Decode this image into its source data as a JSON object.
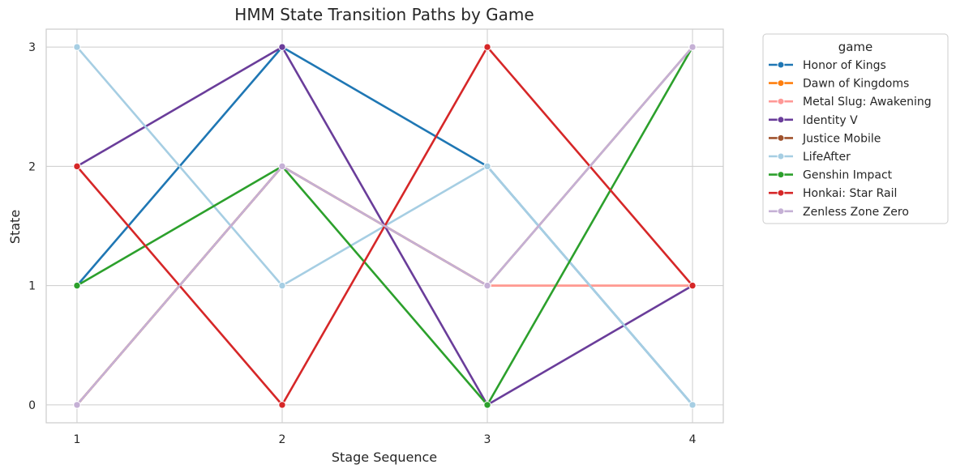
{
  "chart_data": {
    "type": "line",
    "title": "HMM State Transition Paths by Game",
    "xlabel": "Stage Sequence",
    "ylabel": "State",
    "x": [
      1,
      2,
      3,
      4
    ],
    "xticks": [
      1,
      2,
      3,
      4
    ],
    "yticks": [
      0,
      1,
      2,
      3
    ],
    "xlim": [
      0.85,
      4.15
    ],
    "ylim": [
      -0.15,
      3.15
    ],
    "grid": true,
    "legend": {
      "title": "game",
      "placement": "outside-right"
    },
    "series": [
      {
        "name": "Honor of Kings",
        "color": "#1f77b4",
        "values": [
          1,
          3,
          2,
          0
        ]
      },
      {
        "name": "Dawn of Kingdoms",
        "color": "#ff7f0e",
        "values": [
          0,
          2,
          1,
          1
        ]
      },
      {
        "name": "Metal Slug: Awakening",
        "color": "#ff9896",
        "values": [
          0,
          2,
          1,
          1
        ]
      },
      {
        "name": "Identity V",
        "color": "#6a3d9a",
        "values": [
          2,
          3,
          0,
          1
        ]
      },
      {
        "name": "Justice Mobile",
        "color": "#a0522d",
        "values": [
          0,
          2,
          1,
          3
        ]
      },
      {
        "name": "LifeAfter",
        "color": "#a6cee3",
        "values": [
          3,
          1,
          2,
          0
        ]
      },
      {
        "name": "Genshin Impact",
        "color": "#2ca02c",
        "values": [
          1,
          2,
          0,
          3
        ]
      },
      {
        "name": "Honkai: Star Rail",
        "color": "#d62728",
        "values": [
          2,
          0,
          3,
          1
        ]
      },
      {
        "name": "Zenless Zone Zero",
        "color": "#c5b0d5",
        "values": [
          0,
          2,
          1,
          3
        ]
      }
    ]
  }
}
